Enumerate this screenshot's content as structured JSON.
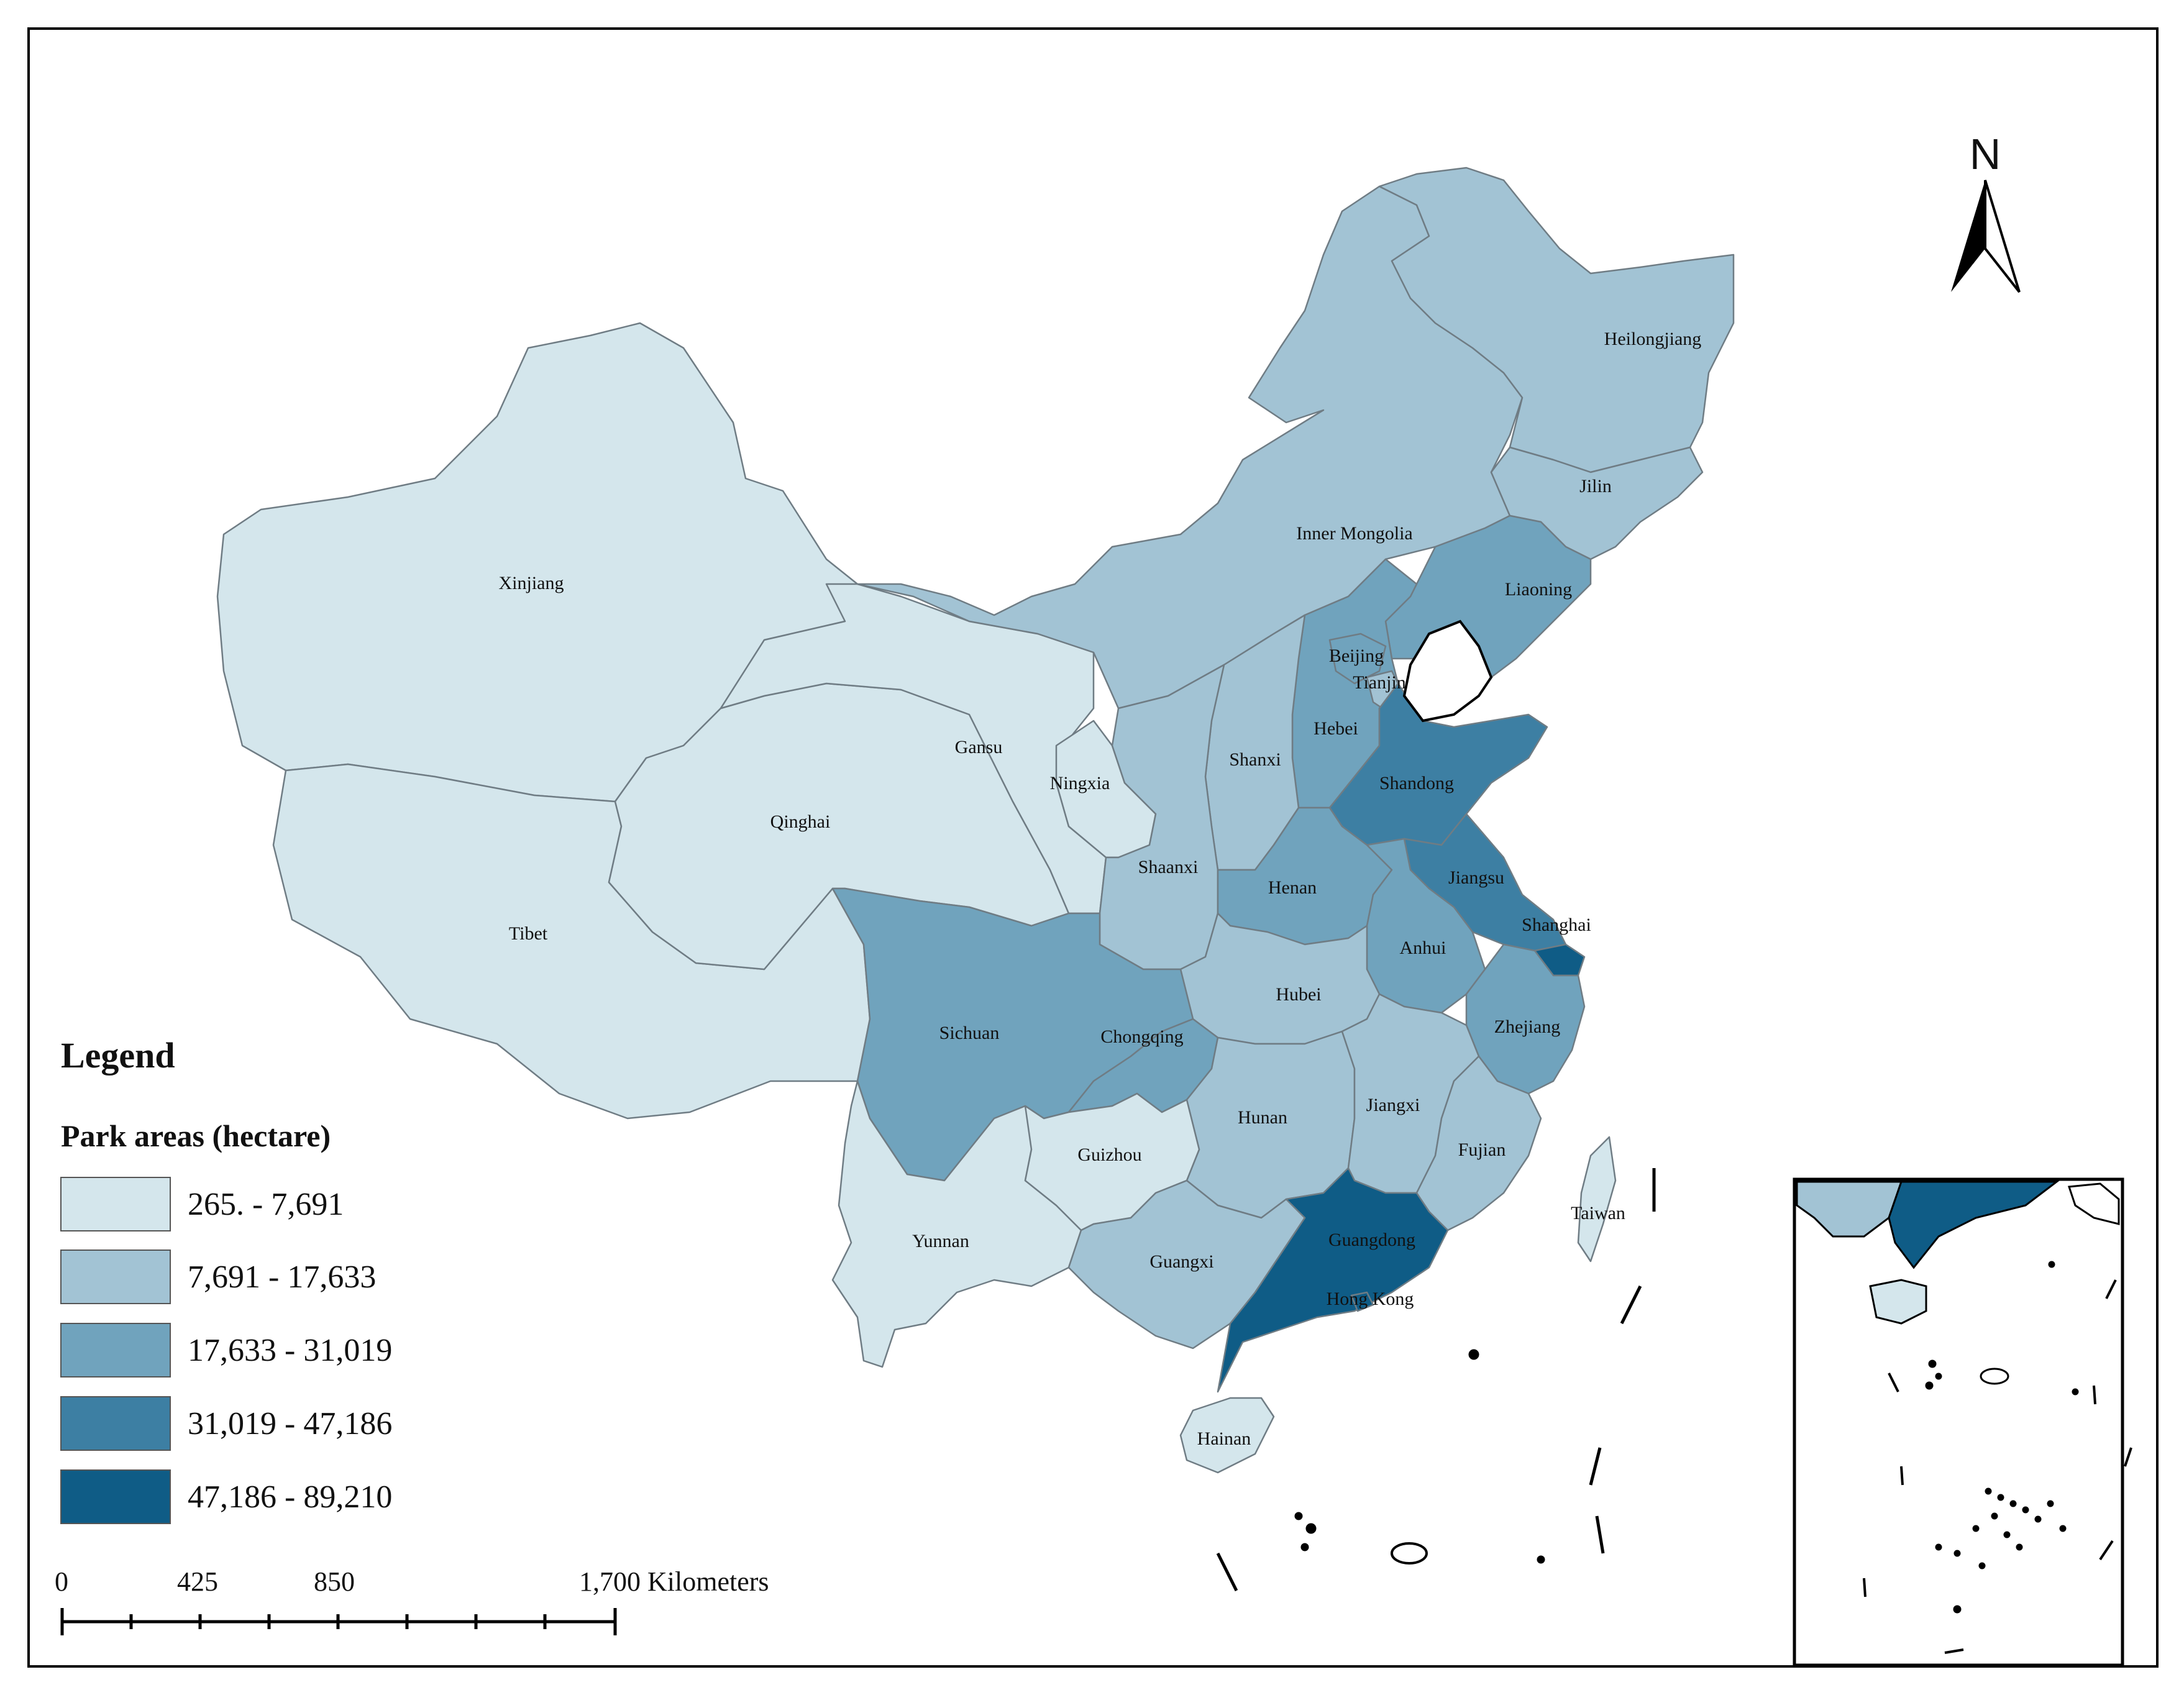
{
  "legend": {
    "title": "Legend",
    "subtitle": "Park areas (hectare)",
    "classes": [
      {
        "label": "265. - 7,691",
        "color": "#d4e6ec"
      },
      {
        "label": "7,691 - 17,633",
        "color": "#a2c3d4"
      },
      {
        "label": "17,633 - 31,019",
        "color": "#70a3bd"
      },
      {
        "label": "31,019 - 47,186",
        "color": "#3d7fa3"
      },
      {
        "label": "47,186 - 89,210",
        "color": "#0f5c86"
      }
    ]
  },
  "scale_bar": {
    "labels": [
      "0",
      "425",
      "850",
      "1,700 Kilometers"
    ]
  },
  "north_arrow": {
    "label": "N"
  },
  "provinces": {
    "Xinjiang": {
      "label": "Xinjiang",
      "class": 0
    },
    "Tibet": {
      "label": "Tibet",
      "class": 0
    },
    "Qinghai": {
      "label": "Qinghai",
      "class": 0
    },
    "Gansu": {
      "label": "Gansu",
      "class": 0
    },
    "Ningxia": {
      "label": "Ningxia",
      "class": 0
    },
    "Yunnan": {
      "label": "Yunnan",
      "class": 0
    },
    "Guizhou": {
      "label": "Guizhou",
      "class": 0
    },
    "Hainan": {
      "label": "Hainan",
      "class": 0
    },
    "Taiwan": {
      "label": "Taiwan",
      "class": 0
    },
    "Heilongjiang": {
      "label": "Heilongjiang",
      "class": 1
    },
    "Jilin": {
      "label": "Jilin",
      "class": 1
    },
    "InnerMongolia": {
      "label": "Inner Mongolia",
      "class": 1
    },
    "Shanxi": {
      "label": "Shanxi",
      "class": 1
    },
    "Shaanxi": {
      "label": "Shaanxi",
      "class": 1
    },
    "Hubei": {
      "label": "Hubei",
      "class": 1
    },
    "Hunan": {
      "label": "Hunan",
      "class": 1
    },
    "Jiangxi": {
      "label": "Jiangxi",
      "class": 1
    },
    "Fujian": {
      "label": "Fujian",
      "class": 1
    },
    "Guangxi": {
      "label": "Guangxi",
      "class": 1
    },
    "Tianjin": {
      "label": "Tianjin",
      "class": 1
    },
    "Liaoning": {
      "label": "Liaoning",
      "class": 2
    },
    "Hebei": {
      "label": "Hebei",
      "class": 2
    },
    "Beijing": {
      "label": "Beijing",
      "class": 2
    },
    "Sichuan": {
      "label": "Sichuan",
      "class": 2
    },
    "Chongqing": {
      "label": "Chongqing",
      "class": 2
    },
    "Henan": {
      "label": "Henan",
      "class": 2
    },
    "Anhui": {
      "label": "Anhui",
      "class": 2
    },
    "Zhejiang": {
      "label": "Zhejiang",
      "class": 2
    },
    "Shandong": {
      "label": "Shandong",
      "class": 3
    },
    "Jiangsu": {
      "label": "Jiangsu",
      "class": 3
    },
    "Shanghai": {
      "label": "Shanghai",
      "class": 4
    },
    "Guangdong": {
      "label": "Guangdong",
      "class": 4
    },
    "HongKong": {
      "label": "Hong Kong",
      "class": 4
    }
  }
}
